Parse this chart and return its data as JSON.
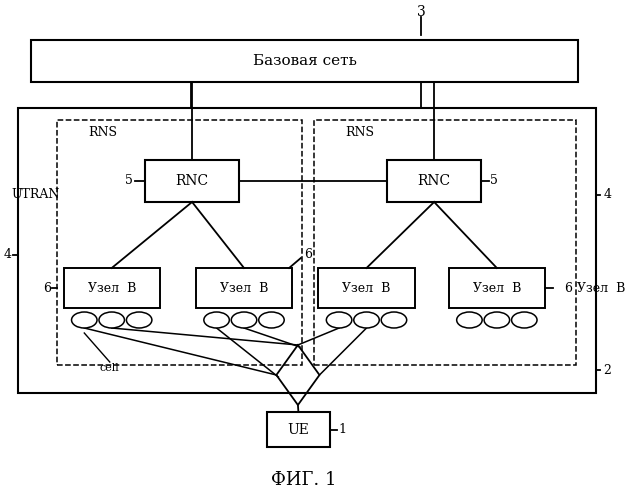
{
  "bg_color": "#ffffff",
  "title": "ФИГ. 1",
  "label_3": "3",
  "label_2": "2",
  "label_1": "1",
  "label_4a": "4",
  "label_4b": "4",
  "label_utran": "UTRAN",
  "label_basovaya": "Базовая сеть",
  "label_rns": "RNS",
  "label_rnc": "RNC",
  "label_uzel_b": "Узел  B",
  "label_ue": "UE",
  "label_cell": "cell",
  "label_5a": "5",
  "label_5b": "5",
  "label_6a": "6",
  "label_6b": "6",
  "label_6c": "6"
}
